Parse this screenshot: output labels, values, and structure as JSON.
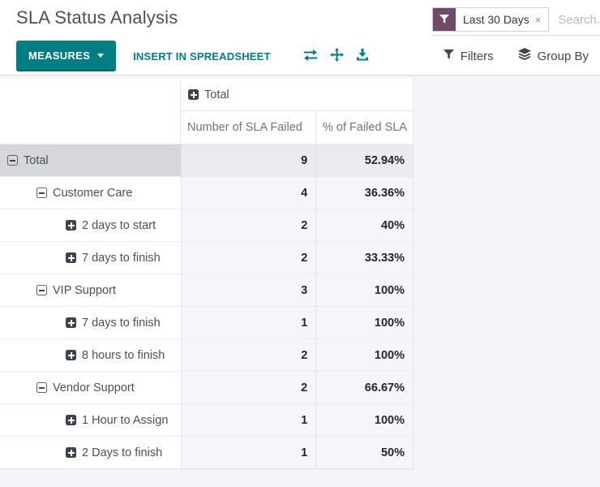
{
  "page": {
    "title": "SLA Status Analysis"
  },
  "search": {
    "facet": {
      "label": "Last 30 Days",
      "remove_symbol": "×"
    },
    "placeholder": "Search..."
  },
  "toolbar": {
    "measures_label": "MEASURES",
    "insert_in_spreadsheet_label": "INSERT IN SPREADSHEET",
    "filters_label": "Filters",
    "group_by_label": "Group By"
  },
  "colors": {
    "accent_teal": "#017e84",
    "brand_purple": "#714b67",
    "total_row_label_bg": "#d5d7db",
    "total_row_value_bg": "#e9ebee",
    "value_cell_bg": "#f5f6f9"
  },
  "pivot": {
    "column_group": {
      "label": "Total",
      "expanded": false
    },
    "measure_headers": [
      "Number of SLA Failed",
      "% of Failed SLA"
    ],
    "rows": [
      {
        "label": "Total",
        "depth": 0,
        "expanded": true,
        "is_total": true,
        "values": [
          "9",
          "52.94%"
        ]
      },
      {
        "label": "Customer Care",
        "depth": 1,
        "expanded": true,
        "is_total": false,
        "values": [
          "4",
          "36.36%"
        ]
      },
      {
        "label": "2 days to start",
        "depth": 2,
        "expanded": false,
        "is_total": false,
        "values": [
          "2",
          "40%"
        ]
      },
      {
        "label": "7 days to finish",
        "depth": 2,
        "expanded": false,
        "is_total": false,
        "values": [
          "2",
          "33.33%"
        ]
      },
      {
        "label": "VIP Support",
        "depth": 1,
        "expanded": true,
        "is_total": false,
        "values": [
          "3",
          "100%"
        ]
      },
      {
        "label": "7 days to finish",
        "depth": 2,
        "expanded": false,
        "is_total": false,
        "values": [
          "1",
          "100%"
        ]
      },
      {
        "label": "8 hours to finish",
        "depth": 2,
        "expanded": false,
        "is_total": false,
        "values": [
          "2",
          "100%"
        ]
      },
      {
        "label": "Vendor Support",
        "depth": 1,
        "expanded": true,
        "is_total": false,
        "values": [
          "2",
          "66.67%"
        ]
      },
      {
        "label": "1 Hour to Assign",
        "depth": 2,
        "expanded": false,
        "is_total": false,
        "values": [
          "1",
          "100%"
        ]
      },
      {
        "label": "2 Days to finish",
        "depth": 2,
        "expanded": false,
        "is_total": false,
        "values": [
          "1",
          "50%"
        ]
      }
    ]
  }
}
